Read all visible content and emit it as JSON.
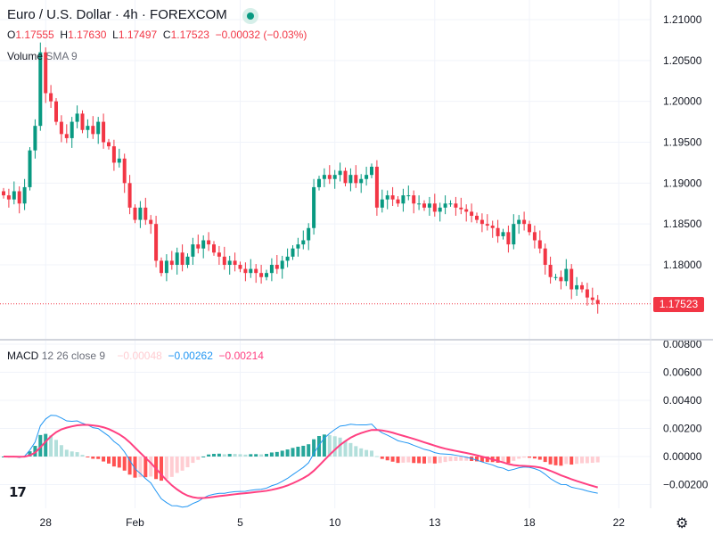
{
  "header": {
    "title": "Euro / U.S. Dollar · 4h · FOREXCOM",
    "ohlc": {
      "o_label": "O",
      "o": "1.17555",
      "h_label": "H",
      "h": "1.17630",
      "l_label": "L",
      "l": "1.17497",
      "c_label": "C",
      "c": "1.17523",
      "change": "−0.00032 (−0.03%)"
    },
    "volume_label": "Volume",
    "volume_sma": "SMA 9",
    "macd_label": "MACD",
    "macd_params": "12 26 close 9",
    "macd_values": {
      "histogram": "−0.00048",
      "macd": "−0.00262",
      "signal": "−0.00214"
    }
  },
  "last_price": "1.17523",
  "price_axis": [
    "1.21000",
    "1.20500",
    "1.20000",
    "1.19500",
    "1.19000",
    "1.18500",
    "1.18000"
  ],
  "price_axis_values": [
    1.21,
    1.205,
    1.2,
    1.195,
    1.19,
    1.185,
    1.18
  ],
  "macd_axis": [
    "0.00800",
    "0.00600",
    "0.00400",
    "0.00200",
    "0.00000",
    "−0.00200"
  ],
  "macd_axis_values": [
    0.008,
    0.006,
    0.004,
    0.002,
    0,
    -0.002
  ],
  "time_axis": [
    "28",
    "Feb",
    "5",
    "10",
    "13",
    "18",
    "22"
  ],
  "time_axis_index": [
    8,
    25,
    45,
    63,
    82,
    100,
    117
  ],
  "logo_text": "TV",
  "colors": {
    "up": "#089981",
    "down": "#f23645",
    "macd": "#2196f3",
    "signal": "#ff4081",
    "hist_up_strong": "#26a69a",
    "hist_up_weak": "#b2dfdb",
    "hist_down_strong": "#ff5252",
    "hist_down_weak": "#ffcdd2"
  },
  "chart_data": {
    "type": "candlestick",
    "interval": "4h",
    "closes": [
      1.1885,
      1.188,
      1.189,
      1.1875,
      1.1895,
      1.194,
      1.197,
      1.206,
      1.201,
      1.2,
      1.1975,
      1.196,
      1.1955,
      1.1975,
      1.1985,
      1.1965,
      1.197,
      1.196,
      1.1975,
      1.195,
      1.1945,
      1.1925,
      1.193,
      1.19,
      1.187,
      1.1855,
      1.187,
      1.1855,
      1.185,
      1.1805,
      1.179,
      1.1805,
      1.18,
      1.1815,
      1.18,
      1.181,
      1.1825,
      1.182,
      1.183,
      1.1825,
      1.1815,
      1.181,
      1.18,
      1.1805,
      1.18,
      1.1795,
      1.179,
      1.1795,
      1.179,
      1.1785,
      1.179,
      1.18,
      1.1795,
      1.1805,
      1.181,
      1.182,
      1.1825,
      1.183,
      1.1845,
      1.1895,
      1.1905,
      1.191,
      1.1905,
      1.191,
      1.1915,
      1.19,
      1.191,
      1.19,
      1.1905,
      1.191,
      1.192,
      1.187,
      1.188,
      1.1885,
      1.188,
      1.1875,
      1.1885,
      1.1885,
      1.1875,
      1.1875,
      1.187,
      1.1875,
      1.1865,
      1.187,
      1.1875,
      1.1875,
      1.187,
      1.1868,
      1.1865,
      1.186,
      1.1855,
      1.185,
      1.1848,
      1.1845,
      1.1835,
      1.184,
      1.1825,
      1.185,
      1.1855,
      1.185,
      1.184,
      1.183,
      1.182,
      1.18,
      1.1785,
      1.1785,
      1.178,
      1.1795,
      1.177,
      1.1775,
      1.177,
      1.176,
      1.1757,
      1.17523
    ]
  }
}
